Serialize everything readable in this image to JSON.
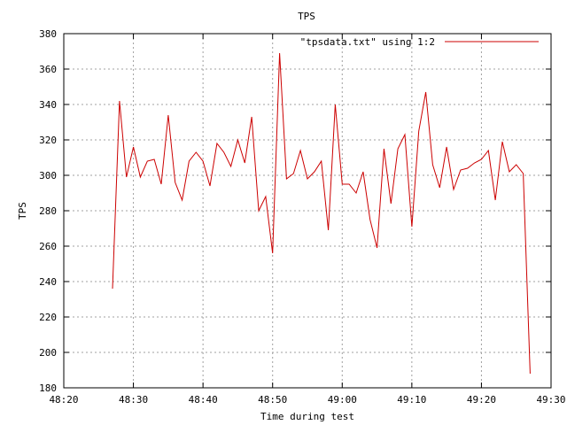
{
  "chart_data": {
    "type": "line",
    "title": "TPS",
    "xlabel": "Time during test",
    "ylabel": "TPS",
    "x_unit": "minutes:seconds",
    "xlim": [
      "48:20",
      "49:30"
    ],
    "ylim": [
      180,
      380
    ],
    "x_ticks": [
      "48:20",
      "48:30",
      "48:40",
      "48:50",
      "49:00",
      "49:10",
      "49:20",
      "49:30"
    ],
    "y_ticks": [
      180,
      200,
      220,
      240,
      260,
      280,
      300,
      320,
      340,
      360,
      380
    ],
    "grid": true,
    "legend_position": "top-right",
    "series": [
      {
        "name": "\"tpsdata.txt\" using 1:2",
        "color": "#cc0000",
        "x": [
          "48:27",
          "48:28",
          "48:29",
          "48:30",
          "48:31",
          "48:32",
          "48:33",
          "48:34",
          "48:35",
          "48:36",
          "48:37",
          "48:38",
          "48:39",
          "48:40",
          "48:41",
          "48:42",
          "48:43",
          "48:44",
          "48:45",
          "48:46",
          "48:47",
          "48:48",
          "48:49",
          "48:50",
          "48:51",
          "48:52",
          "48:53",
          "48:54",
          "48:55",
          "48:56",
          "48:57",
          "48:58",
          "48:59",
          "49:00",
          "49:01",
          "49:02",
          "49:03",
          "49:04",
          "49:05",
          "49:06",
          "49:07",
          "49:08",
          "49:09",
          "49:10",
          "49:11",
          "49:12",
          "49:13",
          "49:14",
          "49:15",
          "49:16",
          "49:17",
          "49:18",
          "49:19",
          "49:20",
          "49:21",
          "49:22",
          "49:23",
          "49:24",
          "49:25",
          "49:26",
          "49:27"
        ],
        "y": [
          236,
          342,
          299,
          316,
          299,
          308,
          309,
          295,
          334,
          296,
          286,
          308,
          313,
          308,
          294,
          318,
          313,
          305,
          320,
          307,
          333,
          280,
          288,
          256,
          369,
          298,
          301,
          314,
          298,
          302,
          308,
          269,
          340,
          295,
          295,
          290,
          302,
          275,
          259,
          315,
          284,
          315,
          323,
          271,
          325,
          347,
          306,
          293,
          316,
          292,
          303,
          304,
          307,
          309,
          314,
          286,
          319,
          302,
          306,
          301,
          188
        ]
      }
    ]
  }
}
